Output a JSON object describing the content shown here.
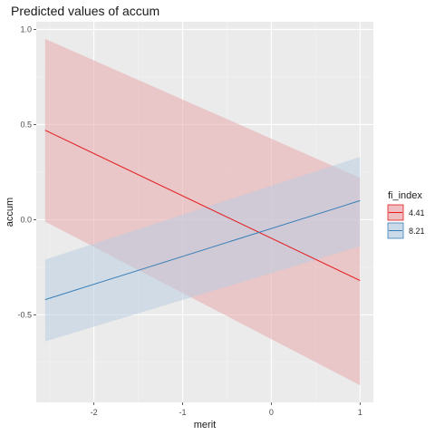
{
  "chart_data": {
    "type": "line",
    "title": "Predicted values of accum",
    "xlabel": "merit",
    "ylabel": "accum",
    "x_ticks": [
      -2,
      -1,
      0,
      1
    ],
    "y_ticks": [
      1.0,
      0.5,
      0.0,
      -0.5
    ],
    "x_tick_labels": [
      "-2",
      "-1",
      "0",
      "1"
    ],
    "y_tick_labels": [
      "1.0",
      "0.5",
      "0.0",
      "-0.5"
    ],
    "xlim": [
      -2.65,
      1.15
    ],
    "ylim": [
      -0.96,
      1.04
    ],
    "grid": true,
    "legend_title": "fi_index",
    "legend_position": "right",
    "series": [
      {
        "name": "4.41",
        "color": "#e41a1c",
        "ribbon_color": "#e8a8ac",
        "x": [
          -2.55,
          1.0
        ],
        "y": [
          0.47,
          -0.32
        ],
        "lower": [
          -0.01,
          -0.87
        ],
        "upper": [
          0.95,
          0.22
        ]
      },
      {
        "name": "8.21",
        "color": "#377eb8",
        "ribbon_color": "#b9cde0",
        "x": [
          -2.55,
          1.0
        ],
        "y": [
          -0.42,
          0.1
        ],
        "lower": [
          -0.64,
          -0.14
        ],
        "upper": [
          -0.21,
          0.33
        ]
      }
    ]
  }
}
